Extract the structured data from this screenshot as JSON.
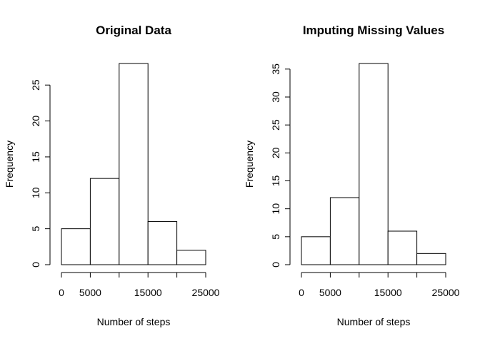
{
  "chart_data": [
    {
      "type": "bar",
      "title": "Original Data",
      "xlabel": "Number of steps",
      "ylabel": "Frequency",
      "bins": [
        [
          0,
          5000
        ],
        [
          5000,
          10000
        ],
        [
          10000,
          15000
        ],
        [
          15000,
          20000
        ],
        [
          20000,
          25000
        ]
      ],
      "values": [
        5,
        12,
        28,
        6,
        2
      ],
      "xlim": [
        0,
        25000
      ],
      "ylim": [
        0,
        28
      ],
      "xticks": [
        0,
        5000,
        10000,
        15000,
        20000,
        25000
      ],
      "xtick_labels": [
        "0",
        "5000",
        "",
        "15000",
        "",
        "25000"
      ],
      "yticks": [
        0,
        5,
        10,
        15,
        20,
        25
      ],
      "ytick_labels": [
        "0",
        "5",
        "10",
        "15",
        "20",
        "25"
      ],
      "grid": false
    },
    {
      "type": "bar",
      "title": "Imputing Missing Values",
      "xlabel": "Number of steps",
      "ylabel": "Frequency",
      "bins": [
        [
          0,
          5000
        ],
        [
          5000,
          10000
        ],
        [
          10000,
          15000
        ],
        [
          15000,
          20000
        ],
        [
          20000,
          25000
        ]
      ],
      "values": [
        5,
        12,
        36,
        6,
        2
      ],
      "xlim": [
        0,
        25000
      ],
      "ylim": [
        0,
        36
      ],
      "xticks": [
        0,
        5000,
        10000,
        15000,
        20000,
        25000
      ],
      "xtick_labels": [
        "0",
        "5000",
        "",
        "15000",
        "",
        "25000"
      ],
      "yticks": [
        0,
        5,
        10,
        15,
        20,
        25,
        30,
        35
      ],
      "ytick_labels": [
        "0",
        "5",
        "10",
        "15",
        "20",
        "25",
        "30",
        "35"
      ],
      "grid": false
    }
  ]
}
